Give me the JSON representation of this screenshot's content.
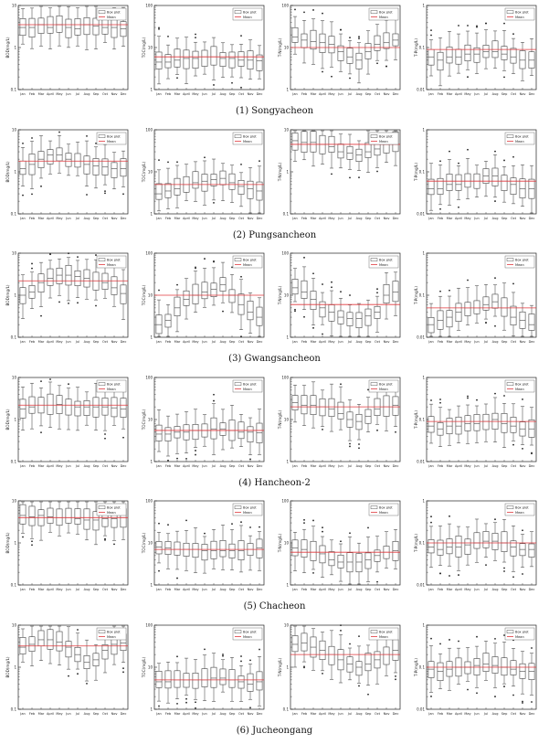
{
  "legend": {
    "box": "Box plot",
    "mean": "Mean"
  },
  "colors": {
    "mean_line": "#e0393e",
    "box": "#333333",
    "axis": "#222222",
    "grid": "#d9d9d9"
  },
  "months": [
    "Jan",
    "Feb",
    "Mar",
    "April",
    "May",
    "Jun",
    "Jul",
    "Aug",
    "Sep",
    "Oct",
    "Nov",
    "Dec"
  ],
  "captions": [
    "(1)  Songyacheon",
    "(2)  Pungsancheon",
    "(3)  Gwangsancheon",
    "(4)  Hancheon-2",
    "(5)  Chacheon",
    "(6)  Jucheongang"
  ],
  "chart_data": [
    {
      "type": "box",
      "site": "Songyacheon",
      "ylabel": "BOD(mg/L)",
      "scale": "log",
      "ylim": [
        0.1,
        10
      ],
      "yticks": [
        "0.1",
        "1",
        "10"
      ],
      "mean": 3.5,
      "medians": [
        3.0,
        3.0,
        3.5,
        3.0,
        3.5,
        3.0,
        2.8,
        3.5,
        3.2,
        3.0,
        3.0,
        2.8
      ]
    },
    {
      "type": "box",
      "site": "Songyacheon",
      "ylabel": "TOC(mg/L)",
      "scale": "log",
      "ylim": [
        1,
        100
      ],
      "yticks": [
        "1",
        "10",
        "100"
      ],
      "mean": 6.0,
      "medians": [
        4.5,
        4.5,
        5.0,
        5.5,
        5.5,
        6.0,
        6.0,
        5.5,
        5.5,
        5.0,
        5.0,
        4.8
      ]
    },
    {
      "type": "box",
      "site": "Songyacheon",
      "ylabel": "T-N(mg/L)",
      "scale": "log",
      "ylim": [
        1,
        100
      ],
      "yticks": [
        "1",
        "10",
        "100"
      ],
      "mean": 10.0,
      "medians": [
        18,
        15,
        14,
        13,
        12,
        8,
        6,
        5,
        8,
        12,
        13,
        15
      ]
    },
    {
      "type": "box",
      "site": "Songyacheon",
      "ylabel": "T-P(mg/L)",
      "scale": "log",
      "ylim": [
        0.01,
        1
      ],
      "yticks": [
        "0.01",
        "0.1",
        "1"
      ],
      "mean": 0.09,
      "medians": [
        0.06,
        0.05,
        0.06,
        0.06,
        0.07,
        0.07,
        0.08,
        0.08,
        0.07,
        0.06,
        0.05,
        0.05
      ]
    },
    {
      "type": "box",
      "site": "Pungsancheon",
      "ylabel": "BOD(mg/L)",
      "scale": "log",
      "ylim": [
        0.1,
        10
      ],
      "yticks": [
        "0.1",
        "1",
        "10"
      ],
      "mean": 1.8,
      "medians": [
        1.2,
        1.5,
        2.0,
        2.5,
        2.5,
        2.0,
        1.8,
        1.5,
        1.4,
        1.3,
        1.2,
        1.2
      ]
    },
    {
      "type": "box",
      "site": "Pungsancheon",
      "ylabel": "TOC(mg/L)",
      "scale": "log",
      "ylim": [
        1,
        100
      ],
      "yticks": [
        "1",
        "10",
        "100"
      ],
      "mean": 5.0,
      "medians": [
        3.0,
        3.5,
        4.0,
        5.0,
        5.5,
        6.0,
        6.5,
        7.0,
        5.5,
        4.5,
        4.0,
        3.5
      ]
    },
    {
      "type": "box",
      "site": "Pungsancheon",
      "ylabel": "T-N(mg/L)",
      "scale": "log",
      "ylim": [
        0.1,
        10
      ],
      "yticks": [
        "0.1",
        "1",
        "10"
      ],
      "mean": 4.5,
      "medians": [
        5.5,
        5.0,
        5.0,
        4.5,
        4.0,
        3.0,
        2.8,
        2.5,
        3.0,
        3.5,
        4.5,
        5.0
      ]
    },
    {
      "type": "box",
      "site": "Pungsancheon",
      "ylabel": "T-P(mg/L)",
      "scale": "log",
      "ylim": [
        0.01,
        1
      ],
      "yticks": [
        "0.01",
        "0.1",
        "1"
      ],
      "mean": 0.06,
      "medians": [
        0.04,
        0.04,
        0.05,
        0.05,
        0.06,
        0.06,
        0.08,
        0.08,
        0.06,
        0.05,
        0.04,
        0.04
      ]
    },
    {
      "type": "box",
      "site": "Gwangsancheon",
      "ylabel": "BOD(mg/L)",
      "scale": "log",
      "ylim": [
        0.1,
        10
      ],
      "yticks": [
        "0.1",
        "1",
        "10"
      ],
      "mean": 2.2,
      "medians": [
        1.0,
        1.2,
        2.0,
        2.5,
        3.0,
        3.0,
        2.8,
        2.5,
        2.2,
        2.0,
        1.5,
        1.1
      ]
    },
    {
      "type": "box",
      "site": "Gwangsancheon",
      "ylabel": "TOC(mg/L)",
      "scale": "log",
      "ylim": [
        1,
        100
      ],
      "yticks": [
        "1",
        "10",
        "100"
      ],
      "mean": 10.0,
      "medians": [
        2.0,
        2.5,
        5.0,
        8.0,
        10.0,
        12.0,
        14.0,
        18.0,
        10.0,
        6.0,
        4.0,
        3.0
      ]
    },
    {
      "type": "box",
      "site": "Gwangsancheon",
      "ylabel": "T-N(mg/L)",
      "scale": "log",
      "ylim": [
        1,
        100
      ],
      "yticks": [
        "1",
        "10",
        "100"
      ],
      "mean": 6.0,
      "medians": [
        15,
        12,
        8,
        5,
        4,
        3,
        2.8,
        2.8,
        3.2,
        4,
        10,
        12
      ]
    },
    {
      "type": "box",
      "site": "Gwangsancheon",
      "ylabel": "T-P(mg/L)",
      "scale": "log",
      "ylim": [
        0.01,
        1
      ],
      "yticks": [
        "0.01",
        "0.1",
        "1"
      ],
      "mean": 0.05,
      "medians": [
        0.02,
        0.025,
        0.03,
        0.04,
        0.05,
        0.05,
        0.06,
        0.07,
        0.05,
        0.03,
        0.025,
        0.02
      ]
    },
    {
      "type": "box",
      "site": "Hancheon-2",
      "ylabel": "BOD(mg/L)",
      "scale": "log",
      "ylim": [
        0.1,
        10
      ],
      "yticks": [
        "0.1",
        "1",
        "10"
      ],
      "mean": 2.2,
      "medians": [
        1.8,
        2.0,
        2.2,
        2.2,
        2.3,
        2.2,
        2.0,
        2.0,
        2.0,
        2.0,
        1.9,
        1.8
      ]
    },
    {
      "type": "box",
      "site": "Hancheon-2",
      "ylabel": "TOC(mg/L)",
      "scale": "log",
      "ylim": [
        1,
        100
      ],
      "yticks": [
        "1",
        "10",
        "100"
      ],
      "mean": 5.5,
      "medians": [
        4.5,
        4.5,
        5.0,
        5.0,
        5.5,
        5.5,
        6.0,
        6.0,
        5.5,
        5.0,
        5.0,
        4.8
      ]
    },
    {
      "type": "box",
      "site": "Hancheon-2",
      "ylabel": "T-N(mg/L)",
      "scale": "log",
      "ylim": [
        1,
        100
      ],
      "yticks": [
        "1",
        "10",
        "100"
      ],
      "mean": 20.0,
      "medians": [
        25,
        22,
        22,
        20,
        18,
        14,
        10,
        9,
        12,
        18,
        20,
        22
      ]
    },
    {
      "type": "box",
      "site": "Hancheon-2",
      "ylabel": "T-P(mg/L)",
      "scale": "log",
      "ylim": [
        0.01,
        1
      ],
      "yticks": [
        "0.01",
        "0.1",
        "1"
      ],
      "mean": 0.09,
      "medians": [
        0.07,
        0.06,
        0.07,
        0.07,
        0.08,
        0.08,
        0.09,
        0.1,
        0.08,
        0.07,
        0.06,
        0.06
      ]
    },
    {
      "type": "box",
      "site": "Chacheon",
      "ylabel": "BOD(mg/L)",
      "scale": "log",
      "ylim": [
        0.1,
        10
      ],
      "yticks": [
        "0.1",
        "1",
        "10"
      ],
      "mean": 4.0,
      "medians": [
        4.5,
        4.2,
        4.5,
        4.2,
        4.0,
        4.0,
        3.8,
        3.5,
        3.5,
        3.8,
        3.8,
        4.0
      ]
    },
    {
      "type": "box",
      "site": "Chacheon",
      "ylabel": "TOC(mg/L)",
      "scale": "log",
      "ylim": [
        1,
        100
      ],
      "yticks": [
        "1",
        "10",
        "100"
      ],
      "mean": 7.0,
      "medians": [
        8.0,
        7.5,
        7.0,
        7.0,
        7.0,
        6.5,
        6.5,
        6.5,
        6.5,
        6.5,
        7.0,
        7.5
      ]
    },
    {
      "type": "box",
      "site": "Chacheon",
      "ylabel": "T-N(mg/L)",
      "scale": "log",
      "ylim": [
        1,
        100
      ],
      "yticks": [
        "1",
        "10",
        "100"
      ],
      "mean": 6.0,
      "medians": [
        7.5,
        7.0,
        6.0,
        5.5,
        4.0,
        3.5,
        3.5,
        3.5,
        4.0,
        5.0,
        6.0,
        6.5
      ]
    },
    {
      "type": "box",
      "site": "Chacheon",
      "ylabel": "T-P(mg/L)",
      "scale": "log",
      "ylim": [
        0.01,
        1
      ],
      "yticks": [
        "0.01",
        "0.1",
        "1"
      ],
      "mean": 0.1,
      "medians": [
        0.08,
        0.07,
        0.08,
        0.08,
        0.09,
        0.1,
        0.11,
        0.11,
        0.1,
        0.08,
        0.07,
        0.07
      ]
    },
    {
      "type": "box",
      "site": "Jucheongang",
      "ylabel": "BOD(mg/L)",
      "scale": "log",
      "ylim": [
        0.1,
        10
      ],
      "yticks": [
        "0.1",
        "1",
        "10"
      ],
      "mean": 3.2,
      "medians": [
        3.0,
        3.5,
        4.5,
        4.5,
        4.0,
        3.0,
        2.0,
        1.3,
        1.5,
        2.5,
        3.5,
        3.8
      ]
    },
    {
      "type": "box",
      "site": "Jucheongang",
      "ylabel": "TOC(mg/L)",
      "scale": "log",
      "ylim": [
        1,
        100
      ],
      "yticks": [
        "1",
        "10",
        "100"
      ],
      "mean": 5.0,
      "medians": [
        4.5,
        4.5,
        5.0,
        5.0,
        5.0,
        5.0,
        5.5,
        5.5,
        5.0,
        4.5,
        4.0,
        4.5
      ]
    },
    {
      "type": "box",
      "site": "Jucheongang",
      "ylabel": "T-N(mg/L)",
      "scale": "log",
      "ylim": [
        0.1,
        10
      ],
      "yticks": [
        "0.1",
        "1",
        "10"
      ],
      "mean": 2.0,
      "medians": [
        3.5,
        3.8,
        3.0,
        2.5,
        2.0,
        1.5,
        1.2,
        1.0,
        1.2,
        1.5,
        2.0,
        2.5
      ]
    },
    {
      "type": "box",
      "site": "Jucheongang",
      "ylabel": "T-P(mg/L)",
      "scale": "log",
      "ylim": [
        0.01,
        1
      ],
      "yticks": [
        "0.01",
        "0.1",
        "1"
      ],
      "mean": 0.1,
      "medians": [
        0.09,
        0.08,
        0.09,
        0.1,
        0.1,
        0.11,
        0.12,
        0.11,
        0.1,
        0.09,
        0.08,
        0.08
      ]
    }
  ]
}
